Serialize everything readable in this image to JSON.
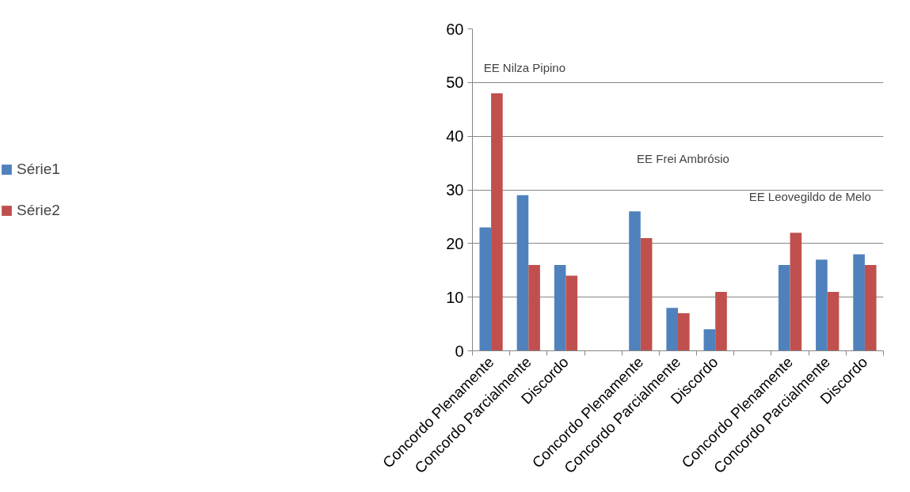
{
  "chart_data": {
    "type": "bar",
    "categories": [
      "Concordo Plenamente",
      "Concordo Parcialmente",
      "Discordo",
      null,
      "Concordo Plenamente",
      "Concordo Parcialmente",
      "Discordo",
      null,
      "Concordo Plenamente",
      "Concordo Parcialmente",
      "Discordo"
    ],
    "series": [
      {
        "name": "Série1",
        "color": "#4f81bd",
        "values": [
          23,
          29,
          16,
          null,
          26,
          8,
          4,
          null,
          16,
          17,
          18
        ]
      },
      {
        "name": "Série2",
        "color": "#c0504d",
        "values": [
          48,
          16,
          14,
          null,
          21,
          7,
          11,
          null,
          22,
          11,
          16
        ]
      }
    ],
    "ylim": [
      0,
      60
    ],
    "yticks": [
      0,
      10,
      20,
      30,
      40,
      50,
      60
    ],
    "grid": "y",
    "legend": "left",
    "annotations": [
      "EE Nilza Pipino",
      "EE Frei Ambrósio",
      "EE Leovegildo de  Melo"
    ]
  }
}
